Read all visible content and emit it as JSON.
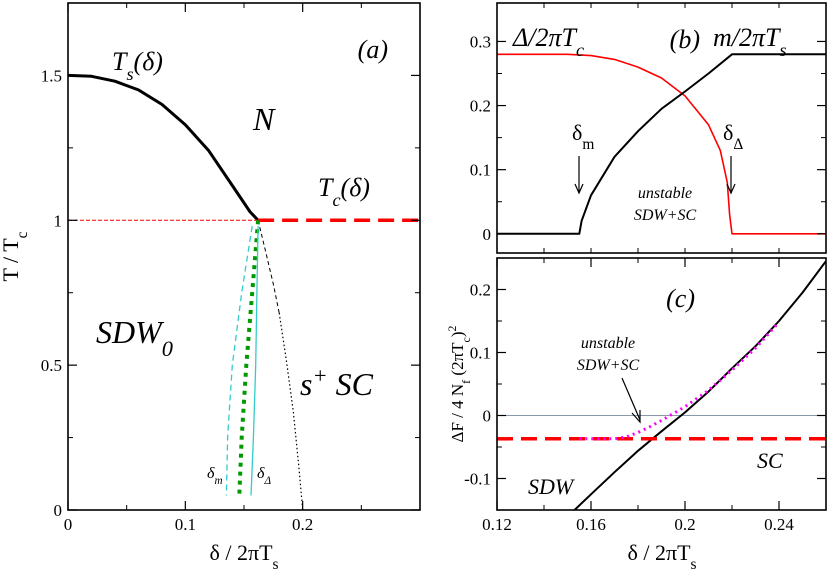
{
  "chart_data": [
    {
      "panel": "(a)",
      "type": "line",
      "xlabel": "δ / 2πT_s",
      "ylabel": "T / T_c",
      "xlim": [
        0,
        0.3
      ],
      "ylim": [
        0,
        1.75
      ],
      "xticks": [
        "0",
        "0.1",
        "0.2"
      ],
      "yticks": [
        "0",
        "0.5",
        "1",
        "1.5"
      ],
      "annotations": {
        "panel_label": "(a)",
        "ts": "T_s(δ)",
        "tc": "T_c(δ)",
        "n": "N",
        "sdw": "SDW_0",
        "sc": "s⁺ SC",
        "dm": "δ_m",
        "dd": "δ_Δ"
      },
      "series": [
        {
          "style": "black-thick-solid",
          "x": [
            0,
            0.02,
            0.04,
            0.06,
            0.08,
            0.1,
            0.12,
            0.14,
            0.155,
            0.162
          ],
          "y": [
            1.5,
            1.497,
            1.48,
            1.45,
            1.4,
            1.33,
            1.24,
            1.12,
            1.03,
            1.0
          ]
        },
        {
          "style": "red-dashed-thick",
          "x": [
            0.162,
            0.3
          ],
          "y": [
            1.0,
            1.0
          ]
        },
        {
          "style": "red-dashed-thin",
          "x": [
            0,
            0.162
          ],
          "y": [
            1.0,
            1.0
          ]
        },
        {
          "style": "black-dashed-thin",
          "x": [
            0.162,
            0.168,
            0.175,
            0.18
          ],
          "y": [
            1.0,
            0.9,
            0.78,
            0.68
          ]
        },
        {
          "style": "black-dotted-thin",
          "x": [
            0.18,
            0.186,
            0.192,
            0.197,
            0.2
          ],
          "y": [
            0.68,
            0.52,
            0.34,
            0.14,
            0.0
          ]
        },
        {
          "style": "green-dotted-thick",
          "x": [
            0.162,
            0.157,
            0.152,
            0.148,
            0.146
          ],
          "y": [
            1.0,
            0.75,
            0.5,
            0.25,
            0.05
          ]
        },
        {
          "style": "cyan-solid",
          "x": [
            0.162,
            0.161,
            0.16,
            0.158,
            0.156
          ],
          "y": [
            0.98,
            0.75,
            0.5,
            0.25,
            0.05
          ]
        },
        {
          "style": "cyan-dashed",
          "x": [
            0.157,
            0.148,
            0.14,
            0.136,
            0.135
          ],
          "y": [
            0.98,
            0.75,
            0.5,
            0.25,
            0.05
          ]
        }
      ]
    },
    {
      "panel": "(b)",
      "type": "line",
      "xlim": [
        0.12,
        0.26
      ],
      "ylim": [
        -0.03,
        0.36
      ],
      "yticks": [
        "0",
        "0.1",
        "0.2",
        "0.3"
      ],
      "annotations": {
        "panel_label": "(b)",
        "gap": "Δ/2πT_c",
        "mag": "m/2πT_s",
        "dm": "δ_m",
        "dd": "δ_Δ",
        "unstable1": "unstable",
        "unstable2": "SDW+SC"
      },
      "series": [
        {
          "name": "Δ/2πT_c",
          "color": "#ff0000",
          "x": [
            0.12,
            0.15,
            0.16,
            0.17,
            0.18,
            0.19,
            0.2,
            0.21,
            0.215,
            0.218,
            0.219,
            0.22,
            0.26
          ],
          "y": [
            0.28,
            0.28,
            0.278,
            0.272,
            0.26,
            0.243,
            0.215,
            0.17,
            0.13,
            0.08,
            0.03,
            0.0,
            0.0
          ]
        },
        {
          "name": "m/2πT_s",
          "color": "#000000",
          "x": [
            0.12,
            0.155,
            0.156,
            0.16,
            0.17,
            0.18,
            0.19,
            0.2,
            0.21,
            0.22,
            0.26
          ],
          "y": [
            0.0,
            0.0,
            0.02,
            0.06,
            0.12,
            0.16,
            0.195,
            0.222,
            0.25,
            0.28,
            0.28
          ]
        }
      ]
    },
    {
      "panel": "(c)",
      "type": "line",
      "xlabel": "δ / 2πT_s",
      "ylabel": "ΔF / 4 N_f (2πT_c)²",
      "xlim": [
        0.12,
        0.26
      ],
      "ylim": [
        -0.15,
        0.25
      ],
      "xticks": [
        "0.12",
        "0.16",
        "0.2",
        "0.24"
      ],
      "yticks": [
        "-0.1",
        "0",
        "0.1",
        "0.2"
      ],
      "annotations": {
        "panel_label": "(c)",
        "unstable1": "unstable",
        "unstable2": "SDW+SC",
        "sdw": "SDW",
        "sc": "SC"
      },
      "series": [
        {
          "name": "SDW",
          "color": "#000000",
          "x": [
            0.153,
            0.16,
            0.17,
            0.18,
            0.19,
            0.2,
            0.21,
            0.22,
            0.23,
            0.24,
            0.25,
            0.26
          ],
          "y": [
            -0.15,
            -0.125,
            -0.09,
            -0.056,
            -0.025,
            0.005,
            0.038,
            0.075,
            0.11,
            0.15,
            0.195,
            0.245
          ]
        },
        {
          "name": "SC",
          "color": "#ff0000",
          "x": [
            0.12,
            0.26
          ],
          "y": [
            -0.037,
            -0.037
          ]
        },
        {
          "name": "unstable SDW+SC",
          "color": "#ff00ff",
          "x": [
            0.155,
            0.17,
            0.175,
            0.18,
            0.185,
            0.19,
            0.2,
            0.21,
            0.22,
            0.23,
            0.24
          ],
          "y": [
            -0.037,
            -0.037,
            -0.034,
            -0.027,
            -0.018,
            -0.008,
            0.014,
            0.04,
            0.072,
            0.107,
            0.148
          ]
        },
        {
          "name": "zero",
          "color": "#8899aa",
          "x": [
            0.12,
            0.26
          ],
          "y": [
            0,
            0
          ]
        }
      ]
    }
  ]
}
